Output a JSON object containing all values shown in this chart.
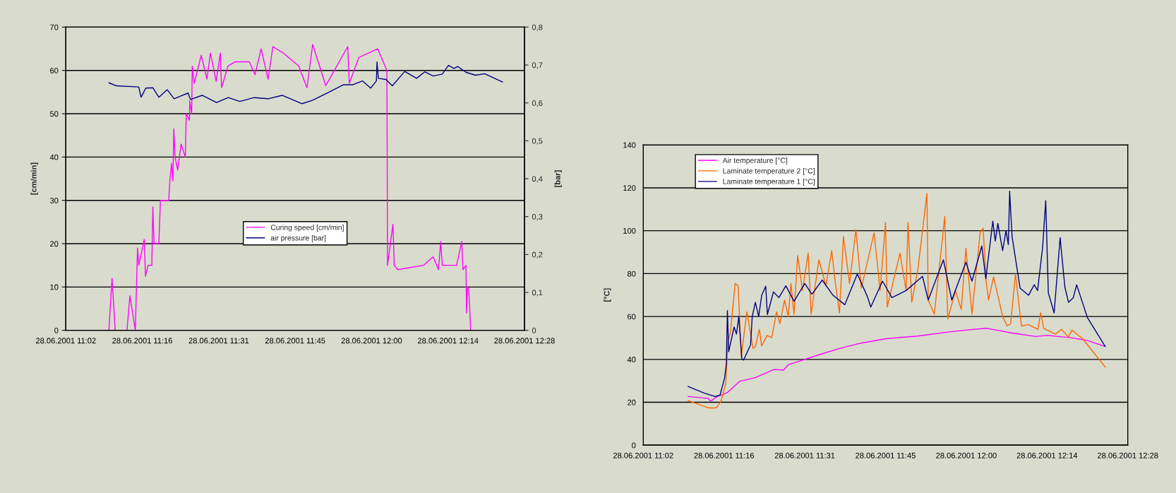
{
  "chart_data": [
    {
      "type": "line",
      "ylabel": "[cm/min]",
      "y2label": "[bar]",
      "xlim": [
        "2001-06-28T11:02:24",
        "2001-06-28T12:28:48"
      ],
      "xticks": [
        {
          "value": "2001-06-28T11:02:24",
          "label": "28.06.2001 11:02"
        },
        {
          "value": "2001-06-28T11:16:48",
          "label": "28.06.2001 11:16"
        },
        {
          "value": "2001-06-28T11:31:12",
          "label": "28.06.2001 11:31"
        },
        {
          "value": "2001-06-28T11:45:36",
          "label": "28.06.2001 11:45"
        },
        {
          "value": "2001-06-28T12:00:00",
          "label": "28.06.2001 12:00"
        },
        {
          "value": "2001-06-28T12:14:24",
          "label": "28.06.2001 12:14"
        },
        {
          "value": "2001-06-28T12:28:48",
          "label": "28.06.2001 12:28"
        }
      ],
      "ylim": [
        0,
        70
      ],
      "yticks": [
        0,
        10,
        20,
        30,
        40,
        50,
        60,
        70
      ],
      "y2lim": [
        0,
        0.8
      ],
      "y2ticks": [
        0,
        {
          "value": 0.1,
          "label": "0,1"
        },
        {
          "value": 0.2,
          "label": "0,2"
        },
        {
          "value": 0.3,
          "label": "0,3"
        },
        {
          "value": 0.4,
          "label": "0,4"
        },
        {
          "value": 0.5,
          "label": "0,5"
        },
        {
          "value": 0.6,
          "label": "0,6"
        },
        {
          "value": 0.7,
          "label": "0,7"
        },
        {
          "value": 0.8,
          "label": "0,8"
        }
      ],
      "grid": "y",
      "legend": "center",
      "line_style": "solid",
      "marker": "none",
      "series": [
        {
          "name": "Curing speed [cm/min]",
          "color": "#ff00ff",
          "x": [
            "2001-06-28T11:10:30",
            "2001-06-28T11:11:06",
            "2001-06-28T11:11:42",
            "2001-06-28T11:13:55",
            "2001-06-28T11:14:28",
            "2001-06-28T11:15:29",
            "2001-06-28T11:15:54",
            "2001-06-28T11:16:08",
            "2001-06-28T11:17:10",
            "2001-06-28T11:17:24",
            "2001-06-28T11:17:53",
            "2001-06-28T11:18:36",
            "2001-06-28T11:18:47",
            "2001-06-28T11:19:01",
            "2001-06-28T11:19:55",
            "2001-06-28T11:20:13",
            "2001-06-28T11:21:47",
            "2001-06-28T11:22:01",
            "2001-06-28T11:22:19",
            "2001-06-28T11:22:34",
            "2001-06-28T11:22:44",
            "2001-06-28T11:22:59",
            "2001-06-28T11:23:28",
            "2001-06-28T11:24:07",
            "2001-06-28T11:24:54",
            "2001-06-28T11:25:05",
            "2001-06-28T11:25:41",
            "2001-06-28T11:25:44",
            "2001-06-28T11:26:06",
            "2001-06-28T11:26:13",
            "2001-06-28T11:26:35",
            "2001-06-28T11:27:54",
            "2001-06-28T11:28:59",
            "2001-06-28T11:29:38",
            "2001-06-28T11:30:43",
            "2001-06-28T11:31:30",
            "2001-06-28T11:31:44",
            "2001-06-28T11:32:56",
            "2001-06-28T11:34:19",
            "2001-06-28T11:36:58",
            "2001-06-28T11:38:02",
            "2001-06-28T11:39:11",
            "2001-06-28T11:40:30",
            "2001-06-28T11:41:24",
            "2001-06-28T11:43:23",
            "2001-06-28T11:46:16",
            "2001-06-28T11:47:49",
            "2001-06-28T11:48:54",
            "2001-06-28T11:51:22",
            "2001-06-28T11:55:30",
            "2001-06-28T11:55:48",
            "2001-06-28T11:57:36",
            "2001-06-28T12:01:08",
            "2001-06-28T12:02:53",
            "2001-06-28T12:03:00",
            "2001-06-28T12:04:01",
            "2001-06-28T12:04:16",
            "2001-06-28T12:04:55",
            "2001-06-28T12:09:47",
            "2001-06-28T12:11:35",
            "2001-06-28T12:12:36",
            "2001-06-28T12:13:01",
            "2001-06-28T12:13:19",
            "2001-06-28T12:16:01",
            "2001-06-28T12:16:59",
            "2001-06-28T12:17:13",
            "2001-06-28T12:17:46",
            "2001-06-28T12:17:53",
            "2001-06-28T12:18:04",
            "2001-06-28T12:18:18",
            "2001-06-28T12:18:40",
            "2001-06-28T12:24:40"
          ],
          "values": [
            0,
            12,
            0,
            0,
            8,
            0,
            19,
            15,
            21,
            12.5,
            15,
            15,
            28.5,
            20,
            20,
            30,
            30,
            35,
            38.5,
            34.5,
            46.5,
            40,
            37,
            43,
            40,
            50,
            48.5,
            53,
            50,
            61,
            57,
            63.5,
            58,
            64,
            57.5,
            64,
            56,
            61,
            62,
            62,
            59,
            65,
            58,
            65.5,
            64,
            61,
            56,
            66,
            56.5,
            65.5,
            57,
            63,
            65,
            60,
            15,
            24.5,
            15,
            14,
            15,
            17,
            14,
            20.5,
            15,
            15,
            20.5,
            14,
            15,
            4,
            10,
            9.5,
            0,
            0
          ]
        },
        {
          "name": "air pressure [bar]",
          "color": "#000080",
          "axis": "y2",
          "x": [
            "2001-06-28T11:10:30",
            "2001-06-28T11:11:56",
            "2001-06-28T11:16:08",
            "2001-06-28T11:16:34",
            "2001-06-28T11:17:28",
            "2001-06-28T11:18:47",
            "2001-06-28T11:19:55",
            "2001-06-28T11:21:29",
            "2001-06-28T11:22:48",
            "2001-06-28T11:25:26",
            "2001-06-28T11:25:52",
            "2001-06-28T11:28:05",
            "2001-06-28T11:30:47",
            "2001-06-28T11:33:00",
            "2001-06-28T11:35:10",
            "2001-06-28T11:37:52",
            "2001-06-28T11:40:30",
            "2001-06-28T11:43:08",
            "2001-06-28T11:46:55",
            "2001-06-28T11:48:54",
            "2001-06-28T11:51:36",
            "2001-06-28T11:54:43",
            "2001-06-28T11:56:28",
            "2001-06-28T11:58:16",
            "2001-06-28T11:59:49",
            "2001-06-28T12:00:54",
            "2001-06-28T12:01:01",
            "2001-06-28T12:01:16",
            "2001-06-28T12:02:42",
            "2001-06-28T12:03:54",
            "2001-06-28T12:06:14",
            "2001-06-28T12:08:28",
            "2001-06-28T12:10:01",
            "2001-06-28T12:11:35",
            "2001-06-28T12:13:19",
            "2001-06-28T12:14:28",
            "2001-06-28T12:15:32",
            "2001-06-28T12:16:12",
            "2001-06-28T12:17:46",
            "2001-06-28T12:19:34",
            "2001-06-28T12:21:18",
            "2001-06-28T12:24:40"
          ],
          "values": [
            0.653,
            0.645,
            0.642,
            0.615,
            0.639,
            0.64,
            0.615,
            0.635,
            0.611,
            0.626,
            0.609,
            0.62,
            0.601,
            0.614,
            0.604,
            0.614,
            0.611,
            0.62,
            0.598,
            0.607,
            0.626,
            0.648,
            0.648,
            0.658,
            0.639,
            0.658,
            0.708,
            0.665,
            0.662,
            0.645,
            0.683,
            0.665,
            0.682,
            0.671,
            0.676,
            0.699,
            0.691,
            0.696,
            0.681,
            0.673,
            0.677,
            0.655
          ]
        }
      ]
    },
    {
      "type": "line",
      "ylabel": "[°C]",
      "xlim": [
        "2001-06-28T11:02:24",
        "2001-06-28T12:28:48"
      ],
      "xticks": [
        {
          "value": "2001-06-28T11:02:24",
          "label": "28.06.2001 11:02"
        },
        {
          "value": "2001-06-28T11:16:48",
          "label": "28.06.2001 11:16"
        },
        {
          "value": "2001-06-28T11:31:12",
          "label": "28.06.2001 11:31"
        },
        {
          "value": "2001-06-28T11:45:36",
          "label": "28.06.2001 11:45"
        },
        {
          "value": "2001-06-28T12:00:00",
          "label": "28.06.2001 12:00"
        },
        {
          "value": "2001-06-28T12:14:24",
          "label": "28.06.2001 12:14"
        },
        {
          "value": "2001-06-28T12:28:48",
          "label": "28.06.2001 12:28"
        }
      ],
      "ylim": [
        0,
        140
      ],
      "yticks": [
        0,
        20,
        40,
        60,
        80,
        100,
        120,
        140
      ],
      "grid": "y",
      "legend": "top left",
      "line_style": "solid",
      "marker": "none",
      "series": [
        {
          "name": "Air temperature [°C]",
          "color": "#ff00ff",
          "x": [
            "2001-06-28T11:10:23",
            "2001-06-28T11:13:59",
            "2001-06-28T11:14:24",
            "2001-06-28T11:15:36",
            "2001-06-28T11:17:20",
            "2001-06-28T11:19:37",
            "2001-06-28T11:22:23",
            "2001-06-28T11:25:44",
            "2001-06-28T11:27:25",
            "2001-06-28T11:28:16",
            "2001-06-28T11:31:12",
            "2001-06-28T11:34:08",
            "2001-06-28T11:37:30",
            "2001-06-28T11:40:52",
            "2001-06-28T11:42:32",
            "2001-06-28T11:45:29",
            "2001-06-28T11:51:22",
            "2001-06-28T11:57:14",
            "2001-06-28T12:01:12",
            "2001-06-28T12:03:43",
            "2001-06-28T12:08:10",
            "2001-06-28T12:12:22",
            "2001-06-28T12:14:28",
            "2001-06-28T12:18:40",
            "2001-06-28T12:21:36",
            "2001-06-28T12:24:47"
          ],
          "values": [
            22.7,
            21.8,
            20.5,
            22.7,
            24.4,
            29.8,
            31.5,
            35.3,
            35,
            37.5,
            40,
            42.5,
            45.2,
            47.4,
            48.2,
            49.6,
            50.9,
            52.9,
            54,
            54.5,
            52.3,
            50.7,
            51.2,
            50.1,
            48.8,
            46
          ]
        },
        {
          "name": "Laminate temperature 2 [°C]",
          "color": "#ff6600",
          "x": [
            "2001-06-28T11:10:23",
            "2001-06-28T11:13:59",
            "2001-06-28T11:15:25",
            "2001-06-28T11:16:16",
            "2001-06-28T11:17:06",
            "2001-06-28T11:17:31",
            "2001-06-28T11:17:56",
            "2001-06-28T11:18:47",
            "2001-06-28T11:19:19",
            "2001-06-28T11:19:52",
            "2001-06-28T11:20:53",
            "2001-06-28T11:21:58",
            "2001-06-28T11:22:23",
            "2001-06-28T11:23:06",
            "2001-06-28T11:23:31",
            "2001-06-28T11:24:29",
            "2001-06-28T11:25:19",
            "2001-06-28T11:26:10",
            "2001-06-28T11:26:46",
            "2001-06-28T11:27:36",
            "2001-06-28T11:28:16",
            "2001-06-28T11:28:44",
            "2001-06-28T11:29:17",
            "2001-06-28T11:29:56",
            "2001-06-28T11:30:47",
            "2001-06-28T11:31:48",
            "2001-06-28T11:32:20",
            "2001-06-28T11:33:43",
            "2001-06-28T11:34:59",
            "2001-06-28T11:36:00",
            "2001-06-28T11:36:40",
            "2001-06-28T11:37:23",
            "2001-06-28T11:38:06",
            "2001-06-28T11:39:11",
            "2001-06-28T11:40:19",
            "2001-06-28T11:41:17",
            "2001-06-28T11:43:34",
            "2001-06-28T11:44:38",
            "2001-06-28T11:45:36",
            "2001-06-28T11:45:54",
            "2001-06-28T11:48:11",
            "2001-06-28T11:49:16",
            "2001-06-28T11:49:37",
            "2001-06-28T11:50:17",
            "2001-06-28T11:51:22",
            "2001-06-28T11:52:59",
            "2001-06-28T11:53:13",
            "2001-06-28T11:54:18",
            "2001-06-28T11:56:10",
            "2001-06-28T11:56:42",
            "2001-06-28T11:58:05",
            "2001-06-28T11:59:06",
            "2001-06-28T11:59:56",
            "2001-06-28T12:01:01",
            "2001-06-28T12:02:28",
            "2001-06-28T12:03:00",
            "2001-06-28T12:03:32",
            "2001-06-28T12:03:58",
            "2001-06-28T12:04:52",
            "2001-06-28T12:06:29",
            "2001-06-28T12:07:19",
            "2001-06-28T12:07:55",
            "2001-06-28T12:08:46",
            "2001-06-28T12:09:50",
            "2001-06-28T12:11:06",
            "2001-06-28T12:12:47",
            "2001-06-28T12:13:16",
            "2001-06-28T12:13:48",
            "2001-06-28T12:15:54",
            "2001-06-28T12:16:59",
            "2001-06-28T12:18:14",
            "2001-06-28T12:18:50",
            "2001-06-28T12:20:46",
            "2001-06-28T12:24:47"
          ],
          "values": [
            20.8,
            17.4,
            17.4,
            20.5,
            28.7,
            49,
            52.3,
            75.4,
            74.3,
            41.4,
            62.2,
            45.2,
            45.8,
            54,
            46.3,
            51.2,
            50.1,
            62.2,
            56.7,
            67.7,
            60,
            75.4,
            61.1,
            88.5,
            72.1,
            89.6,
            61.1,
            86.4,
            74.3,
            90.7,
            75.4,
            61.7,
            97.3,
            75.4,
            100.6,
            73.2,
            99,
            72.1,
            103.9,
            64.4,
            89.6,
            72.1,
            103.9,
            66.6,
            82,
            117.4,
            67.7,
            61.1,
            106.7,
            58.9,
            72.1,
            63.3,
            91.8,
            61.1,
            99,
            101.2,
            76.5,
            67.7,
            78.5,
            60,
            55.6,
            56.7,
            79.8,
            55.6,
            56.2,
            54,
            61.7,
            54.5,
            51.8,
            54,
            50.4,
            53.7,
            49.6,
            36.4
          ]
        },
        {
          "name": "Laminate temperature 1 [°C]",
          "color": "#000080",
          "x": [
            "2001-06-28T11:10:23",
            "2001-06-28T11:13:08",
            "2001-06-28T11:15:11",
            "2001-06-28T11:16:05",
            "2001-06-28T11:16:55",
            "2001-06-28T11:17:13",
            "2001-06-28T11:17:24",
            "2001-06-28T11:17:38",
            "2001-06-28T11:18:36",
            "2001-06-28T11:19:01",
            "2001-06-28T11:19:26",
            "2001-06-28T11:19:59",
            "2001-06-28T11:20:17",
            "2001-06-28T11:21:32",
            "2001-06-28T11:21:50",
            "2001-06-28T11:22:23",
            "2001-06-28T11:22:59",
            "2001-06-28T11:23:31",
            "2001-06-28T11:24:14",
            "2001-06-28T11:24:32",
            "2001-06-28T11:25:37",
            "2001-06-28T11:26:35",
            "2001-06-28T11:27:50",
            "2001-06-28T11:29:17",
            "2001-06-28T11:31:12",
            "2001-06-28T11:32:28",
            "2001-06-28T11:34:19",
            "2001-06-28T11:36:14",
            "2001-06-28T11:38:20",
            "2001-06-28T11:40:34",
            "2001-06-28T11:42:22",
            "2001-06-28T11:42:58",
            "2001-06-28T11:45:04",
            "2001-06-28T11:46:44",
            "2001-06-28T11:49:16",
            "2001-06-28T11:52:12",
            "2001-06-28T11:53:13",
            "2001-06-28T11:55:55",
            "2001-06-28T11:57:25",
            "2001-06-28T11:59:56",
            "2001-06-28T12:01:01",
            "2001-06-28T12:02:46",
            "2001-06-28T12:03:29",
            "2001-06-28T12:04:44",
            "2001-06-28T12:05:10",
            "2001-06-28T12:05:38",
            "2001-06-28T12:06:29",
            "2001-06-28T12:07:05",
            "2001-06-28T12:07:30",
            "2001-06-28T12:07:44",
            "2001-06-28T12:08:10",
            "2001-06-28T12:09:36",
            "2001-06-28T12:11:06",
            "2001-06-28T12:12:07",
            "2001-06-28T12:12:43",
            "2001-06-28T12:13:37",
            "2001-06-28T12:14:10",
            "2001-06-28T12:14:38",
            "2001-06-28T12:15:40",
            "2001-06-28T12:16:44",
            "2001-06-28T12:17:35",
            "2001-06-28T12:18:14",
            "2001-06-28T12:19:05",
            "2001-06-28T12:19:41",
            "2001-06-28T12:21:36",
            "2001-06-28T12:24:47"
          ],
          "values": [
            27.4,
            24.4,
            22.7,
            23.3,
            31.5,
            38.1,
            62.8,
            43.6,
            55.1,
            51.8,
            60,
            40.3,
            39.7,
            46.8,
            60,
            66.6,
            60,
            69.9,
            74.1,
            60.9,
            71.5,
            68.8,
            74.3,
            67.1,
            75.4,
            70.4,
            77,
            69.9,
            65.5,
            79.8,
            69.3,
            64.4,
            76.5,
            68.8,
            72.1,
            78.7,
            67.7,
            86.4,
            67.7,
            85.3,
            76.5,
            92.9,
            77.6,
            104.5,
            95.2,
            103.4,
            90.7,
            100.1,
            93.5,
            118.4,
            97.3,
            73.2,
            69.9,
            74.8,
            72.1,
            92.4,
            114,
            71,
            61.7,
            96.8,
            73.7,
            66.6,
            68.8,
            74.8,
            59.5,
            46
          ]
        }
      ]
    }
  ]
}
